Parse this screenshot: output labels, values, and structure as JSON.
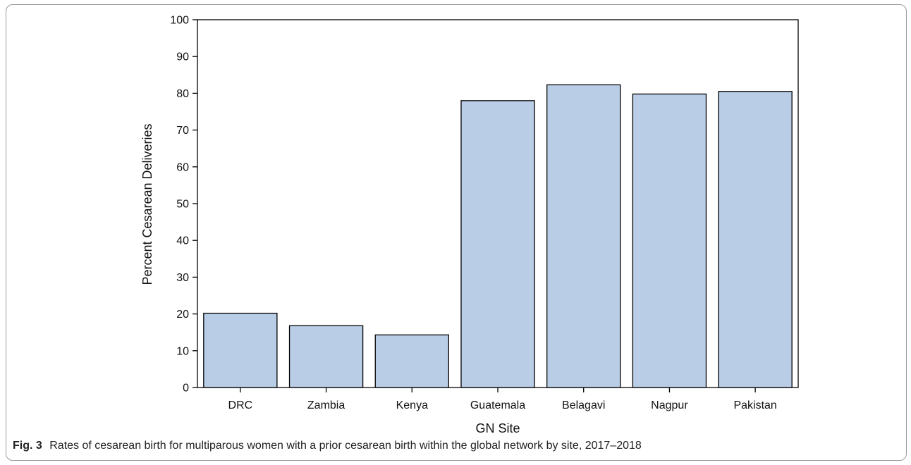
{
  "caption": {
    "label": "Fig. 3",
    "text": "Rates of cesarean birth for multiparous women with a prior cesarean birth within the global network by site, 2017–2018"
  },
  "chart_data": {
    "type": "bar",
    "categories": [
      "DRC",
      "Zambia",
      "Kenya",
      "Guatemala",
      "Belagavi",
      "Nagpur",
      "Pakistan"
    ],
    "values": [
      20.2,
      16.8,
      14.3,
      78.0,
      82.3,
      79.8,
      80.5
    ],
    "xlabel": "GN Site",
    "ylabel": "Percent Cesarean Deliveries",
    "ylim": [
      0,
      100
    ],
    "yticks": [
      0,
      10,
      20,
      30,
      40,
      50,
      60,
      70,
      80,
      90,
      100
    ],
    "bar_color": "#b9cde6",
    "bar_edge_color": "#000000",
    "grid": false,
    "legend": "none"
  }
}
